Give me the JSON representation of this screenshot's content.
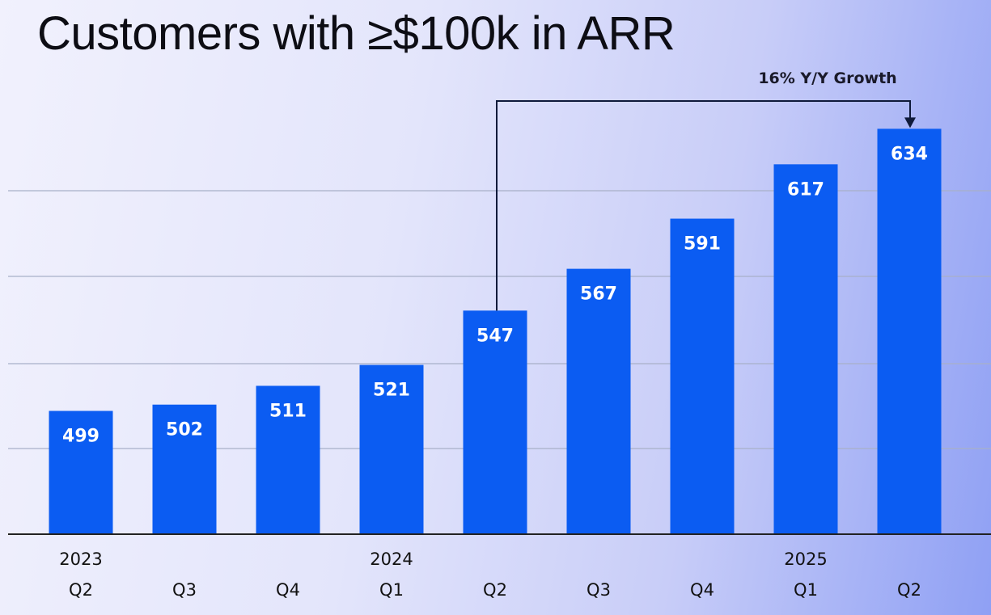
{
  "chart_data": {
    "type": "bar",
    "title": "Customers with ≥$100k in ARR",
    "categories": [
      "Q2",
      "Q3",
      "Q4",
      "Q1",
      "Q2",
      "Q3",
      "Q4",
      "Q1",
      "Q2"
    ],
    "year_labels": [
      "2023",
      "",
      "",
      "2024",
      "",
      "",
      "",
      "2025",
      ""
    ],
    "values": [
      499,
      502,
      511,
      521,
      547,
      567,
      591,
      617,
      634
    ],
    "ylim": [
      440,
      650
    ],
    "grid": true,
    "annotation": {
      "text": "16% Y/Y Growth",
      "from_index": 4,
      "to_index": 8
    },
    "colors": {
      "bar": "#0b5cf2",
      "grid": "#a8b0c8",
      "axis": "#222222",
      "arrow": "#0f1a3a"
    }
  }
}
